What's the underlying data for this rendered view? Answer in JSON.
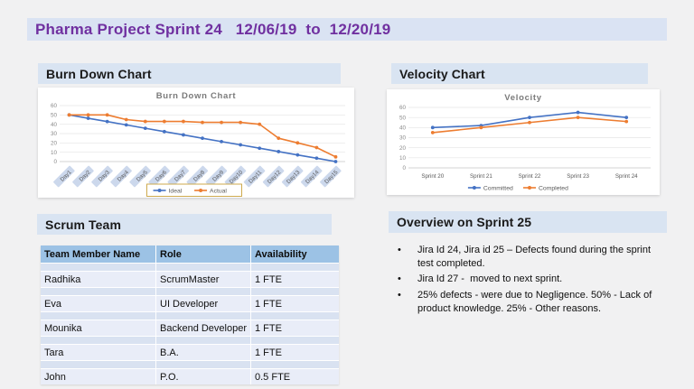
{
  "title": "Pharma Project Sprint 24   12/06/19  to  12/20/19",
  "colors": {
    "series_blue": "#4472c4",
    "series_orange": "#ed7d31",
    "title_text": "#7030a0",
    "band_bg": "#dae3f3",
    "table_header_bg": "#9cc2e5",
    "table_row_bg": "#e9edf8",
    "legend_border": "#c9a13b",
    "label_chip_bg": "#ccd8ec"
  },
  "sections": {
    "burndown": {
      "header": "Burn Down Chart"
    },
    "velocity": {
      "header": "Velocity Chart"
    },
    "scrum": {
      "header": "Scrum Team"
    },
    "overview": {
      "header": "Overview on Sprint 25"
    }
  },
  "scrum_table": {
    "columns": [
      "Team Member Name",
      "Role",
      "Availability"
    ],
    "rows": [
      [
        "Radhika",
        "ScrumMaster",
        "1 FTE"
      ],
      [
        "Eva",
        "UI Developer",
        "1 FTE"
      ],
      [
        "Mounika",
        "Backend Developer",
        "1 FTE"
      ],
      [
        "Tara",
        "B.A.",
        "1 FTE"
      ],
      [
        "John",
        "P.O.",
        "0.5 FTE"
      ]
    ]
  },
  "overview_bullets": [
    "Jira Id 24, Jira id 25 – Defects found during the sprint test completed.",
    "Jira Id 27 -  moved to next sprint.",
    "25% defects - were due to Negligence. 50% - Lack of product knowledge. 25% - Other reasons."
  ],
  "chart_data": [
    {
      "type": "line",
      "title": "Burn Down Chart",
      "categories": [
        "Day1",
        "Day2",
        "Day3",
        "Day4",
        "Day5",
        "Day6",
        "Day7",
        "Day8",
        "Day9",
        "Day10",
        "Day11",
        "Day12",
        "Day13",
        "Day14",
        "Day15"
      ],
      "series": [
        {
          "name": "Ideal",
          "color": "#4472c4",
          "values": [
            50,
            46.4,
            42.9,
            39.3,
            35.7,
            32.1,
            28.6,
            25,
            21.4,
            17.9,
            14.3,
            10.7,
            7.1,
            3.6,
            0
          ]
        },
        {
          "name": "Actual",
          "color": "#ed7d31",
          "values": [
            50,
            50,
            50,
            45,
            43,
            43,
            43,
            42,
            42,
            42,
            40,
            25,
            20,
            15,
            5
          ]
        }
      ],
      "xlabel": "",
      "ylabel": "",
      "ylim": [
        0,
        60
      ],
      "ytick": 10,
      "grid": true,
      "legend_position": "bottom",
      "legend_border": true,
      "rotated_labels": true
    },
    {
      "type": "line",
      "title": "Velocity",
      "categories": [
        "Sprint 20",
        "Sprint 21",
        "Sprint 22",
        "Sprint 23",
        "Sprint 24"
      ],
      "series": [
        {
          "name": "Committed",
          "color": "#4472c4",
          "values": [
            40,
            42,
            50,
            55,
            50
          ]
        },
        {
          "name": "Completed",
          "color": "#ed7d31",
          "values": [
            35,
            40,
            45,
            50,
            46
          ]
        }
      ],
      "xlabel": "",
      "ylabel": "",
      "ylim": [
        0,
        60
      ],
      "ytick": 10,
      "grid": true,
      "legend_position": "bottom",
      "legend_border": false,
      "rotated_labels": false
    }
  ]
}
